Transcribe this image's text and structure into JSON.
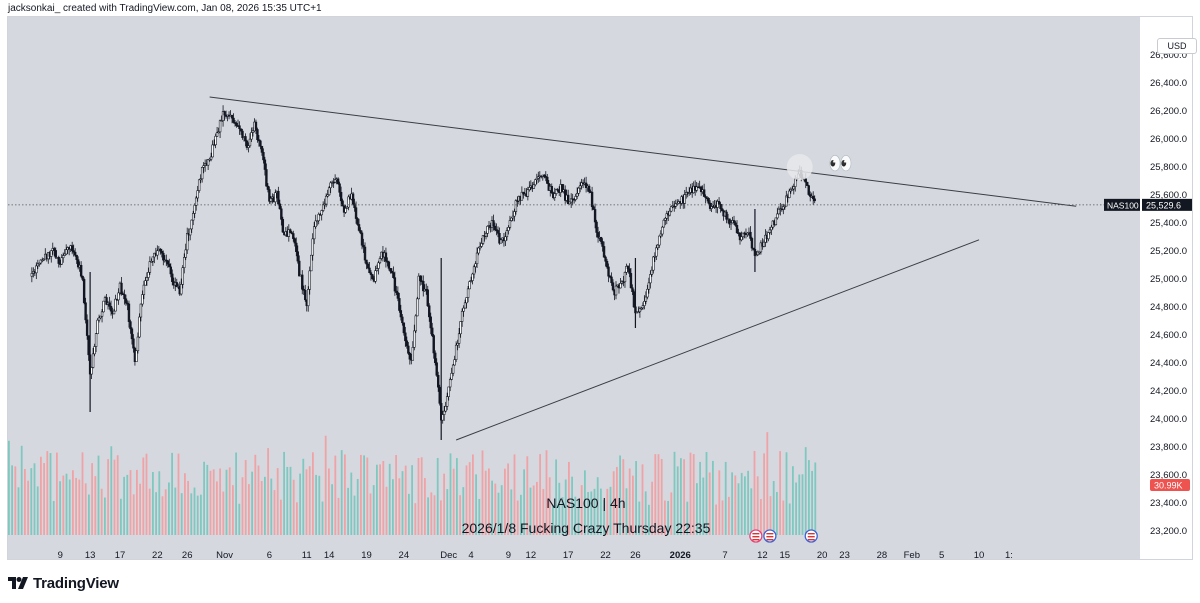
{
  "header": {
    "text": "jacksonkai_ created with TradingView.com, Jan 08, 2026 15:35 UTC+1"
  },
  "currency": "USD",
  "footer": {
    "brand": "TradingView",
    "logo_icon": "tradingview-logo-icon"
  },
  "chart_data": {
    "type": "candlestick",
    "symbol_label": "NAS100 | 4h",
    "note": "2026/1/8 Fucking Crazy Thursday 22:35",
    "ylim": [
      23100,
      26800
    ],
    "y_ticks": [
      23200,
      23400,
      23600,
      23800,
      24000,
      24200,
      24400,
      24600,
      24800,
      25000,
      25200,
      25400,
      25600,
      25800,
      26000,
      26200,
      26400,
      26600
    ],
    "y_tick_labels": [
      "23,200.0",
      "23,400.0",
      "23,600.0",
      "23,800.0",
      "24,000.0",
      "24,200.0",
      "24,400.0",
      "24,600.0",
      "24,800.0",
      "25,000.0",
      "25,200.0",
      "25,400.0",
      "25,600.0",
      "25,800.0",
      "26,000.0",
      "26,200.0",
      "26,400.0",
      "26,600.0"
    ],
    "x_ticks": [
      {
        "label": "9",
        "day": 9
      },
      {
        "label": "13",
        "day": 13
      },
      {
        "label": "17",
        "day": 17
      },
      {
        "label": "22",
        "day": 22
      },
      {
        "label": "26",
        "day": 26
      },
      {
        "label": "Nov",
        "day": 31
      },
      {
        "label": "6",
        "day": 37
      },
      {
        "label": "11",
        "day": 42
      },
      {
        "label": "14",
        "day": 45
      },
      {
        "label": "19",
        "day": 50
      },
      {
        "label": "24",
        "day": 55
      },
      {
        "label": "Dec",
        "day": 61
      },
      {
        "label": "4",
        "day": 64
      },
      {
        "label": "9",
        "day": 69
      },
      {
        "label": "12",
        "day": 72
      },
      {
        "label": "17",
        "day": 77
      },
      {
        "label": "22",
        "day": 82
      },
      {
        "label": "26",
        "day": 86
      },
      {
        "label": "2026",
        "day": 92,
        "bold": true
      },
      {
        "label": "7",
        "day": 98
      },
      {
        "label": "12",
        "day": 103
      },
      {
        "label": "15",
        "day": 106
      },
      {
        "label": "20",
        "day": 111
      },
      {
        "label": "23",
        "day": 114
      },
      {
        "label": "28",
        "day": 119
      },
      {
        "label": "Feb",
        "day": 123
      },
      {
        "label": "5",
        "day": 127
      },
      {
        "label": "10",
        "day": 132
      },
      {
        "label": "1:",
        "day": 136
      }
    ],
    "last_price": {
      "symbol": "NAS100",
      "value": 25529.6,
      "label": "25,529.6"
    },
    "volume_badge": "30.99K",
    "price_path": [
      [
        5,
        25020
      ],
      [
        6,
        25080
      ],
      [
        7,
        25150
      ],
      [
        8,
        25200
      ],
      [
        9,
        25100
      ],
      [
        10,
        25230
      ],
      [
        11,
        25180
      ],
      [
        12,
        25000
      ],
      [
        13,
        24300
      ],
      [
        14,
        24700
      ],
      [
        15,
        24850
      ],
      [
        16,
        24750
      ],
      [
        17,
        24950
      ],
      [
        18,
        24800
      ],
      [
        19,
        24400
      ],
      [
        20,
        24900
      ],
      [
        21,
        25100
      ],
      [
        22,
        25200
      ],
      [
        23,
        25150
      ],
      [
        24,
        25000
      ],
      [
        25,
        24900
      ],
      [
        26,
        25300
      ],
      [
        27,
        25500
      ],
      [
        28,
        25800
      ],
      [
        29,
        25850
      ],
      [
        30,
        26050
      ],
      [
        31,
        26200
      ],
      [
        32,
        26150
      ],
      [
        33,
        26050
      ],
      [
        34,
        25950
      ],
      [
        35,
        26100
      ],
      [
        36,
        25900
      ],
      [
        37,
        25550
      ],
      [
        38,
        25600
      ],
      [
        39,
        25300
      ],
      [
        40,
        25350
      ],
      [
        41,
        25050
      ],
      [
        42,
        24800
      ],
      [
        43,
        25400
      ],
      [
        44,
        25500
      ],
      [
        45,
        25650
      ],
      [
        46,
        25700
      ],
      [
        47,
        25500
      ],
      [
        48,
        25600
      ],
      [
        49,
        25350
      ],
      [
        50,
        25100
      ],
      [
        51,
        25000
      ],
      [
        52,
        25200
      ],
      [
        53,
        25100
      ],
      [
        54,
        24900
      ],
      [
        55,
        24600
      ],
      [
        56,
        24400
      ],
      [
        57,
        25000
      ],
      [
        58,
        24900
      ],
      [
        59,
        24500
      ],
      [
        60,
        24000
      ],
      [
        61,
        24200
      ],
      [
        62,
        24500
      ],
      [
        63,
        24800
      ],
      [
        64,
        25000
      ],
      [
        65,
        25200
      ],
      [
        66,
        25350
      ],
      [
        67,
        25400
      ],
      [
        68,
        25250
      ],
      [
        69,
        25350
      ],
      [
        70,
        25550
      ],
      [
        71,
        25600
      ],
      [
        72,
        25650
      ],
      [
        73,
        25750
      ],
      [
        74,
        25700
      ],
      [
        75,
        25600
      ],
      [
        76,
        25650
      ],
      [
        77,
        25550
      ],
      [
        78,
        25600
      ],
      [
        79,
        25700
      ],
      [
        80,
        25600
      ],
      [
        81,
        25300
      ],
      [
        82,
        25150
      ],
      [
        83,
        24900
      ],
      [
        84,
        24950
      ],
      [
        85,
        25100
      ],
      [
        86,
        24750
      ],
      [
        87,
        24800
      ],
      [
        88,
        25050
      ],
      [
        89,
        25250
      ],
      [
        90,
        25450
      ],
      [
        91,
        25500
      ],
      [
        92,
        25550
      ],
      [
        93,
        25600
      ],
      [
        94,
        25650
      ],
      [
        95,
        25620
      ],
      [
        96,
        25500
      ],
      [
        97,
        25550
      ],
      [
        98,
        25450
      ],
      [
        99,
        25400
      ],
      [
        100,
        25300
      ],
      [
        101,
        25350
      ],
      [
        102,
        25150
      ],
      [
        103,
        25250
      ],
      [
        104,
        25350
      ],
      [
        105,
        25450
      ],
      [
        106,
        25550
      ],
      [
        107,
        25650
      ],
      [
        108,
        25750
      ],
      [
        109,
        25650
      ],
      [
        110,
        25530
      ]
    ],
    "trendlines": [
      {
        "name": "upper",
        "from": [
          29,
          26300
        ],
        "to": [
          145,
          25520
        ]
      },
      {
        "name": "lower",
        "from": [
          62,
          23850
        ],
        "to": [
          132,
          25280
        ]
      }
    ],
    "emoji": "👀"
  }
}
